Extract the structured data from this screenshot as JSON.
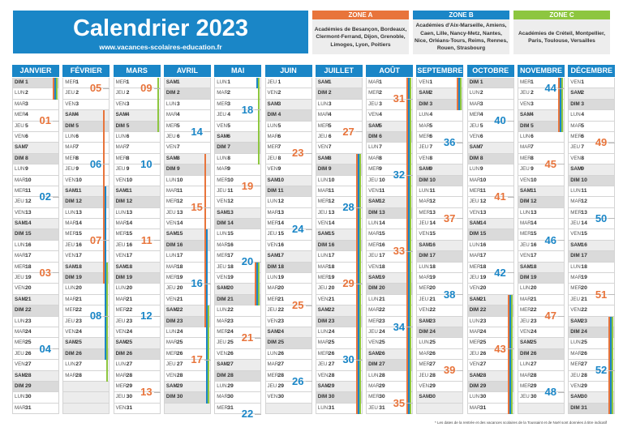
{
  "header": {
    "title": "Calendrier 2023",
    "url": "www.vacances-scolaires-education.fr"
  },
  "zones": [
    {
      "label": "ZONE A",
      "color": "#e8743b",
      "text": "Académies de Besançon, Bordeaux, Clermont-Ferrand, Dijon, Grenoble, Limoges, Lyon, Poitiers"
    },
    {
      "label": "ZONE B",
      "color": "#1a86c7",
      "text": "Académies d'Aix-Marseille, Amiens, Caen, Lille, Nancy-Metz, Nantes, Nice, Orléans-Tours, Reims, Rennes, Rouen, Strasbourg"
    },
    {
      "label": "ZONE C",
      "color": "#8dc63f",
      "text": "Académies de Créteil, Montpellier, Paris, Toulouse, Versailles"
    }
  ],
  "colors": {
    "zone_a": "#e8743b",
    "zone_b": "#1a86c7",
    "zone_c": "#8dc63f",
    "header": "#1a86c7"
  },
  "day_names": [
    "DIM",
    "LUN",
    "MAR",
    "MER",
    "JEU",
    "VEN",
    "SAM"
  ],
  "months": [
    {
      "name": "JANVIER",
      "days": 31,
      "start": 0,
      "weeks": [
        [
          4,
          "01"
        ],
        [
          11,
          "02"
        ],
        [
          18,
          "03"
        ],
        [
          25,
          "04"
        ]
      ],
      "vac": {
        "A": [
          [
            1,
            2
          ]
        ],
        "B": [
          [
            1,
            2
          ]
        ],
        "C": [
          [
            1,
            2
          ]
        ]
      }
    },
    {
      "name": "FÉVRIER",
      "days": 28,
      "start": 3,
      "weeks": [
        [
          1,
          "05"
        ],
        [
          8,
          "06"
        ],
        [
          15,
          "07"
        ],
        [
          22,
          "08"
        ]
      ],
      "vac": {
        "A": [
          [
            4,
            19
          ]
        ],
        "B": [
          [
            11,
            26
          ]
        ],
        "C": [
          [
            18,
            28
          ]
        ]
      }
    },
    {
      "name": "MARS",
      "days": 31,
      "start": 3,
      "weeks": [
        [
          1,
          "09"
        ],
        [
          8,
          "10"
        ],
        [
          15,
          "11"
        ],
        [
          22,
          "12"
        ],
        [
          29,
          "13"
        ]
      ],
      "vac": {
        "A": [],
        "B": [],
        "C": [
          [
            1,
            5
          ]
        ]
      }
    },
    {
      "name": "AVRIL",
      "days": 30,
      "start": 6,
      "weeks": [
        [
          5,
          "14"
        ],
        [
          12,
          "15"
        ],
        [
          19,
          "16"
        ],
        [
          26,
          "17"
        ]
      ],
      "vac": {
        "A": [
          [
            8,
            23
          ]
        ],
        "B": [
          [
            15,
            30
          ]
        ],
        "C": [
          [
            22,
            30
          ]
        ]
      }
    },
    {
      "name": "MAI",
      "days": 31,
      "start": 1,
      "weeks": [
        [
          3,
          "18"
        ],
        [
          10,
          "19"
        ],
        [
          17,
          "20"
        ],
        [
          24,
          "21"
        ],
        [
          31,
          "22"
        ]
      ],
      "vac": {
        "A": [
          [
            18,
            21
          ]
        ],
        "B": [
          [
            1,
            1
          ],
          [
            18,
            21
          ]
        ],
        "C": [
          [
            1,
            8
          ],
          [
            18,
            21
          ]
        ]
      }
    },
    {
      "name": "JUIN",
      "days": 30,
      "start": 4,
      "weeks": [
        [
          7,
          "23"
        ],
        [
          14,
          "24"
        ],
        [
          21,
          "25"
        ],
        [
          28,
          "26"
        ]
      ],
      "vac": {
        "A": [],
        "B": [],
        "C": []
      }
    },
    {
      "name": "JUILLET",
      "days": 31,
      "start": 6,
      "weeks": [
        [
          5,
          "27"
        ],
        [
          12,
          "28"
        ],
        [
          19,
          "29"
        ],
        [
          26,
          "30"
        ]
      ],
      "vac": {
        "A": [
          [
            8,
            31
          ]
        ],
        "B": [
          [
            8,
            31
          ]
        ],
        "C": [
          [
            8,
            31
          ]
        ]
      }
    },
    {
      "name": "AOÛT",
      "days": 31,
      "start": 2,
      "weeks": [
        [
          2,
          "31"
        ],
        [
          9,
          "32"
        ],
        [
          16,
          "33"
        ],
        [
          23,
          "34"
        ],
        [
          30,
          "35"
        ]
      ],
      "vac": {
        "A": [
          [
            1,
            31
          ]
        ],
        "B": [
          [
            1,
            31
          ]
        ],
        "C": [
          [
            1,
            31
          ]
        ]
      }
    },
    {
      "name": "SEPTEMBRE",
      "days": 30,
      "start": 5,
      "weeks": [
        [
          6,
          "36"
        ],
        [
          13,
          "37"
        ],
        [
          20,
          "38"
        ],
        [
          27,
          "39"
        ]
      ],
      "vac": {
        "A": [
          [
            1,
            3
          ]
        ],
        "B": [
          [
            1,
            3
          ]
        ],
        "C": [
          [
            1,
            3
          ]
        ]
      }
    },
    {
      "name": "OCTOBRE",
      "days": 31,
      "start": 0,
      "weeks": [
        [
          4,
          "40"
        ],
        [
          11,
          "41"
        ],
        [
          18,
          "42"
        ],
        [
          25,
          "43"
        ]
      ],
      "vac": {
        "A": [
          [
            21,
            31
          ]
        ],
        "B": [
          [
            21,
            31
          ]
        ],
        "C": [
          [
            21,
            31
          ]
        ]
      }
    },
    {
      "name": "NOVEMBRE",
      "days": 30,
      "start": 3,
      "weeks": [
        [
          1,
          "44"
        ],
        [
          8,
          "45"
        ],
        [
          15,
          "46"
        ],
        [
          22,
          "47"
        ],
        [
          29,
          "48"
        ]
      ],
      "vac": {
        "A": [
          [
            1,
            5
          ]
        ],
        "B": [
          [
            1,
            5
          ]
        ],
        "C": [
          [
            1,
            5
          ]
        ]
      }
    },
    {
      "name": "DÉCEMBRE",
      "days": 31,
      "start": 5,
      "weeks": [
        [
          6,
          "49"
        ],
        [
          13,
          "50"
        ],
        [
          20,
          "51"
        ],
        [
          27,
          "52"
        ]
      ],
      "vac": {
        "A": [
          [
            23,
            31
          ]
        ],
        "B": [
          [
            23,
            31
          ]
        ],
        "C": [
          [
            23,
            31
          ]
        ]
      }
    }
  ],
  "footnote": "* Les dates de la rentrée et des vacances scolaires de la Toussaint et de Noël sont données à titre indicatif"
}
